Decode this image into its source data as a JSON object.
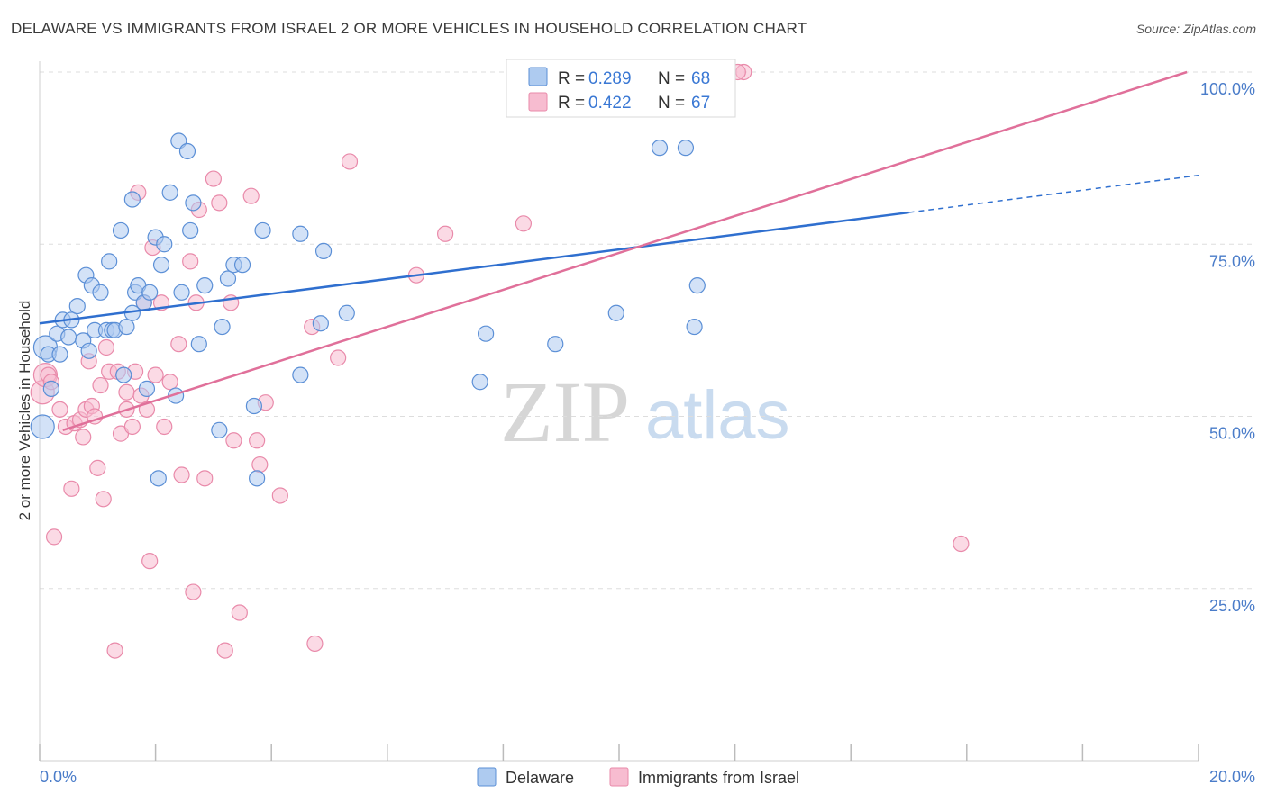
{
  "title": "DELAWARE VS IMMIGRANTS FROM ISRAEL 2 OR MORE VEHICLES IN HOUSEHOLD CORRELATION CHART",
  "source": "Source: ZipAtlas.com",
  "watermark": {
    "zip": "ZIP",
    "atlas": "atlas"
  },
  "colors": {
    "blue_fill": "#aecbf0",
    "blue_stroke": "#5b8fd6",
    "blue_line": "#2f6fcf",
    "pink_fill": "#f7bcd0",
    "pink_stroke": "#e98aaa",
    "pink_line": "#e0709a",
    "grid": "#dddddd",
    "tick_text": "#4a7cc9"
  },
  "legend": {
    "rows": [
      {
        "r_label": "R =",
        "r_value": "0.289",
        "n_label": "N =",
        "n_value": "68"
      },
      {
        "r_label": "R =",
        "r_value": "0.422",
        "n_label": "N =",
        "n_value": "67"
      }
    ]
  },
  "chart_data": {
    "type": "scatter",
    "title": "DELAWARE VS IMMIGRANTS FROM ISRAEL 2 OR MORE VEHICLES IN HOUSEHOLD CORRELATION CHART",
    "xlabel": "",
    "ylabel": "2 or more Vehicles in Household",
    "xlim": [
      0,
      20
    ],
    "ylim": [
      0,
      102
    ],
    "x_tick_labels": [
      "0.0%",
      "20.0%"
    ],
    "y_ticks": [
      25,
      50,
      75,
      100
    ],
    "y_tick_labels": [
      "25.0%",
      "50.0%",
      "75.0%",
      "100.0%"
    ],
    "grid": true,
    "legend_position": "bottom-center",
    "series": [
      {
        "name": "Delaware",
        "r": 0.289,
        "n": 68,
        "trend": {
          "x": [
            0,
            15.0
          ],
          "y": [
            63.5,
            79.6
          ],
          "dashed_to": [
            20.0,
            85.0
          ]
        },
        "points": [
          [
            0.05,
            48.5
          ],
          [
            0.1,
            60.0
          ],
          [
            0.15,
            59.0
          ],
          [
            0.2,
            54.0
          ],
          [
            0.3,
            62.0
          ],
          [
            0.35,
            59.0
          ],
          [
            0.4,
            64.0
          ],
          [
            0.5,
            61.5
          ],
          [
            0.55,
            64.0
          ],
          [
            0.65,
            66.0
          ],
          [
            0.75,
            61.0
          ],
          [
            0.8,
            70.5
          ],
          [
            0.85,
            59.5
          ],
          [
            0.9,
            69.0
          ],
          [
            0.95,
            62.5
          ],
          [
            1.05,
            68.0
          ],
          [
            1.15,
            62.5
          ],
          [
            1.2,
            72.5
          ],
          [
            1.25,
            62.5
          ],
          [
            1.3,
            62.5
          ],
          [
            1.4,
            77.0
          ],
          [
            1.45,
            56.0
          ],
          [
            1.5,
            63.0
          ],
          [
            1.6,
            81.5
          ],
          [
            1.6,
            65.0
          ],
          [
            1.65,
            68.0
          ],
          [
            1.7,
            69.0
          ],
          [
            1.8,
            66.5
          ],
          [
            1.85,
            54.0
          ],
          [
            1.9,
            68.0
          ],
          [
            2.0,
            76.0
          ],
          [
            2.05,
            41.0
          ],
          [
            2.1,
            72.0
          ],
          [
            2.15,
            75.0
          ],
          [
            2.25,
            82.5
          ],
          [
            2.35,
            53.0
          ],
          [
            2.4,
            90.0
          ],
          [
            2.45,
            68.0
          ],
          [
            2.55,
            88.5
          ],
          [
            2.6,
            77.0
          ],
          [
            2.65,
            81.0
          ],
          [
            2.75,
            60.5
          ],
          [
            2.85,
            69.0
          ],
          [
            3.1,
            48.0
          ],
          [
            3.15,
            63.0
          ],
          [
            3.25,
            70.0
          ],
          [
            3.35,
            72.0
          ],
          [
            3.5,
            72.0
          ],
          [
            3.7,
            51.5
          ],
          [
            3.75,
            41.0
          ],
          [
            3.85,
            77.0
          ],
          [
            4.5,
            76.5
          ],
          [
            4.5,
            56.0
          ],
          [
            4.9,
            74.0
          ],
          [
            4.85,
            63.5
          ],
          [
            5.3,
            65.0
          ],
          [
            7.6,
            55.0
          ],
          [
            7.7,
            62.0
          ],
          [
            8.9,
            60.5
          ],
          [
            9.95,
            65.0
          ],
          [
            10.55,
            100.0
          ],
          [
            10.7,
            89.0
          ],
          [
            11.15,
            89.0
          ],
          [
            11.3,
            63.0
          ],
          [
            11.1,
            100.0
          ],
          [
            11.35,
            69.0
          ],
          [
            8.3,
            100.0
          ],
          [
            9.8,
            100.0
          ]
        ]
      },
      {
        "name": "Immigrants from Israel",
        "r": 0.422,
        "n": 67,
        "trend": {
          "x": [
            0.4,
            19.8
          ],
          "y": [
            48.0,
            100.0
          ]
        },
        "points": [
          [
            0.05,
            53.5
          ],
          [
            0.1,
            56.0
          ],
          [
            0.15,
            56.0
          ],
          [
            0.2,
            55.0
          ],
          [
            0.25,
            32.5
          ],
          [
            0.35,
            51.0
          ],
          [
            0.45,
            48.5
          ],
          [
            0.55,
            39.5
          ],
          [
            0.6,
            49.0
          ],
          [
            0.7,
            49.5
          ],
          [
            0.75,
            47.0
          ],
          [
            0.8,
            51.0
          ],
          [
            0.85,
            58.0
          ],
          [
            0.9,
            51.5
          ],
          [
            0.95,
            50.0
          ],
          [
            1.0,
            42.5
          ],
          [
            1.05,
            54.5
          ],
          [
            1.1,
            38.0
          ],
          [
            1.15,
            60.0
          ],
          [
            1.2,
            56.5
          ],
          [
            1.3,
            16.0
          ],
          [
            1.35,
            56.5
          ],
          [
            1.4,
            47.5
          ],
          [
            1.5,
            53.5
          ],
          [
            1.5,
            51.0
          ],
          [
            1.6,
            48.5
          ],
          [
            1.65,
            56.5
          ],
          [
            1.7,
            82.5
          ],
          [
            1.75,
            53.0
          ],
          [
            1.8,
            66.5
          ],
          [
            1.85,
            51.0
          ],
          [
            1.9,
            29.0
          ],
          [
            1.95,
            74.5
          ],
          [
            2.0,
            56.0
          ],
          [
            2.1,
            66.5
          ],
          [
            2.15,
            48.5
          ],
          [
            2.25,
            55.0
          ],
          [
            2.4,
            60.5
          ],
          [
            2.45,
            41.5
          ],
          [
            2.6,
            72.5
          ],
          [
            2.65,
            24.5
          ],
          [
            2.7,
            66.5
          ],
          [
            2.75,
            80.0
          ],
          [
            2.85,
            41.0
          ],
          [
            3.0,
            84.5
          ],
          [
            3.1,
            81.0
          ],
          [
            3.2,
            16.0
          ],
          [
            3.3,
            66.5
          ],
          [
            3.35,
            46.5
          ],
          [
            3.45,
            21.5
          ],
          [
            3.65,
            82.0
          ],
          [
            3.75,
            46.5
          ],
          [
            3.8,
            43.0
          ],
          [
            3.9,
            52.0
          ],
          [
            4.15,
            38.5
          ],
          [
            4.7,
            63.0
          ],
          [
            4.75,
            17.0
          ],
          [
            5.15,
            58.5
          ],
          [
            5.35,
            87.0
          ],
          [
            6.5,
            70.5
          ],
          [
            7.0,
            76.5
          ],
          [
            8.35,
            78.0
          ],
          [
            10.6,
            100.0
          ],
          [
            12.15,
            100.0
          ],
          [
            12.05,
            100.0
          ],
          [
            15.9,
            31.5
          ],
          [
            10.1,
            100.0
          ]
        ]
      }
    ]
  },
  "axis": {
    "ylabel": "2 or more Vehicles in Household",
    "x_min_label": "0.0%",
    "x_max_label": "20.0%"
  },
  "bottom_legend": {
    "items": [
      "Delaware",
      "Immigrants from Israel"
    ]
  }
}
